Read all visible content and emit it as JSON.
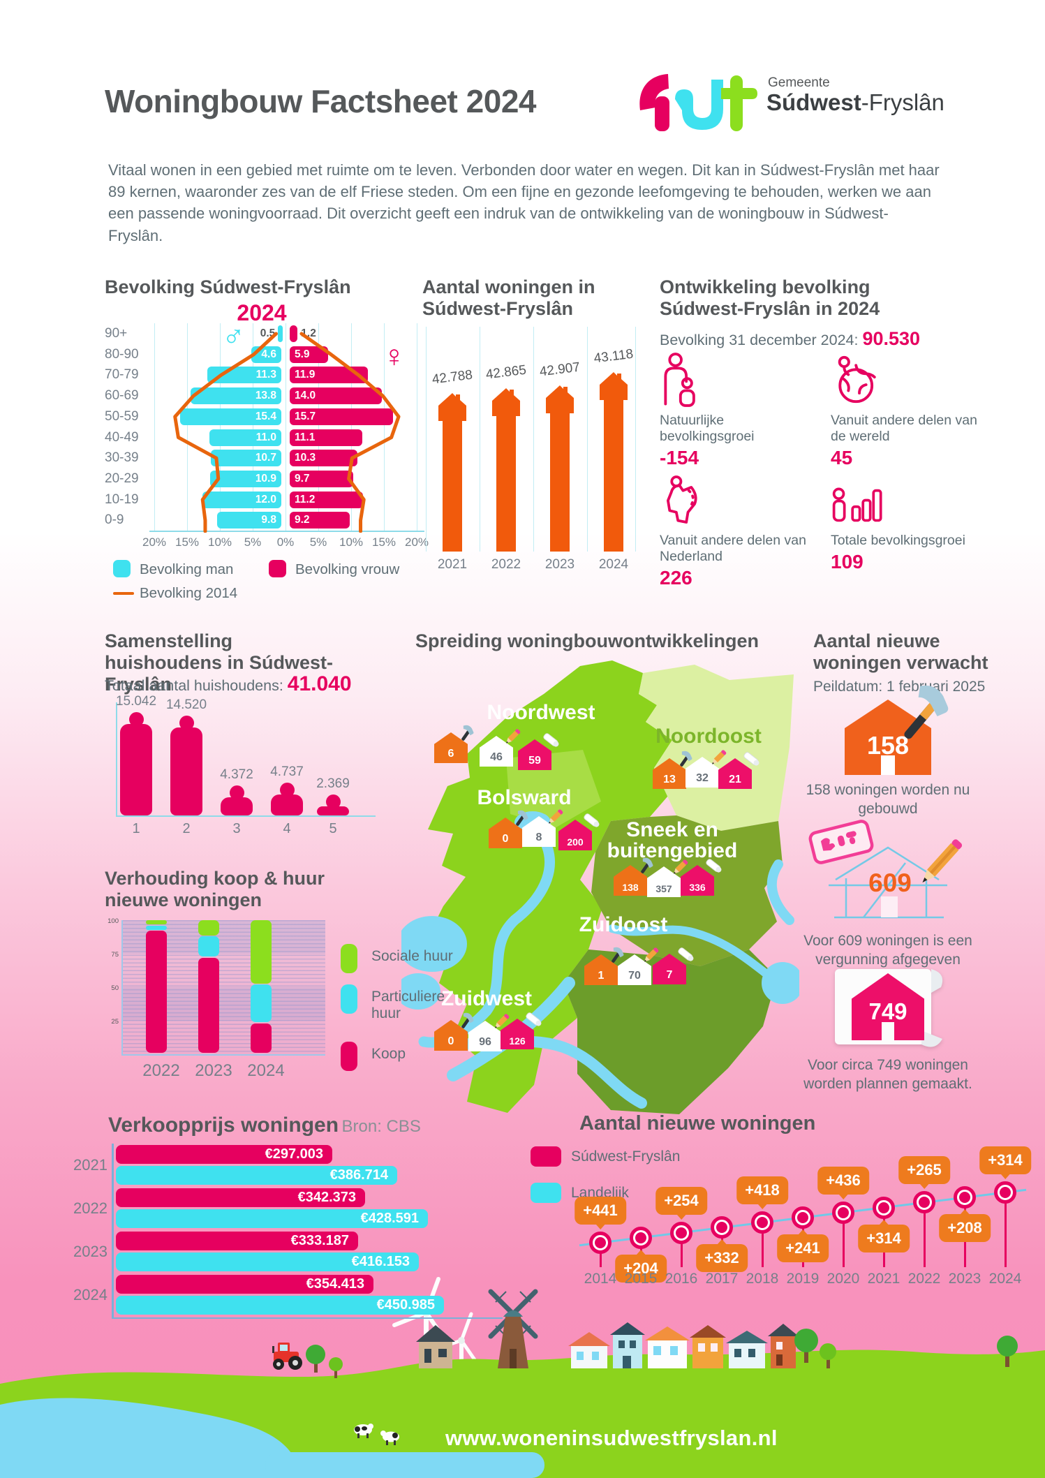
{
  "header": {
    "title": "Woningbouw Factsheet 2024",
    "logo": {
      "gemeente": "Gemeente",
      "name_bold": "Súdwest",
      "name_light": "-Fryslân"
    }
  },
  "intro": "Vitaal wonen in een gebied met ruimte om te leven. Verbonden door water en wegen. Dit kan in Súdwest-Fryslân met haar 89 kernen, waaronder zes van de elf Friese steden. Om een fijne en gezonde leefomgeving te behouden, werken we aan een passende woningvoorraad. Dit overzicht geeft een indruk van de ontwikkeling van de woningbouw in Súdwest-Fryslân.",
  "colors": {
    "pink": "#e6005f",
    "cyan": "#3fe1ef",
    "orange": "#f15a0c",
    "orange_soft": "#ee7b1e",
    "green": "#8cde1e",
    "map_green": "#8cd31d",
    "map_light": "#dcf0a2",
    "map_olive": "#7fa62c",
    "map_dark": "#6c9d2a",
    "water": "#7fd9f4",
    "heading_gray": "#55585a",
    "body_gray": "#5f6e75"
  },
  "sections": {
    "ontwikkeling": {
      "heading": "Ontwikkeling bevolking Súdwest-Fryslân in 2024",
      "intro_label": "Bevolking 31 december 2024:",
      "intro_value": "90.530",
      "items": [
        {
          "icon": "family-icon",
          "label": "Natuurlijke bevolkingsgroei",
          "value": "-154"
        },
        {
          "icon": "globe-icon",
          "label": "Vanuit andere delen van de wereld",
          "value": "45"
        },
        {
          "icon": "netherlands-icon",
          "label": "Vanuit andere delen van Nederland",
          "value": "226"
        },
        {
          "icon": "growth-chart-icon",
          "label": "Totale bevolkingsgroei",
          "value": "109"
        }
      ]
    },
    "verwacht": {
      "heading": "Aantal nieuwe woningen verwacht",
      "subtitle": "Peildatum: 1 februari 2025",
      "items": [
        {
          "icon": "orange-house-hammer-icon",
          "value": "158",
          "caption": "158 woningen worden nu gebouwd"
        },
        {
          "icon": "blueprint-pencil-icon",
          "value": "609",
          "caption": "Voor 609 woningen is een vergunning afgegeven"
        },
        {
          "icon": "pink-house-plan-icon",
          "value": "749",
          "caption": "Voor circa 749 woningen worden plannen gemaakt."
        }
      ]
    }
  },
  "chart_data": [
    {
      "id": "bevolking_piramide",
      "type": "bar",
      "title": "Bevolking Súdwest-Fryslân",
      "year_label": "2024",
      "categories": [
        "90+",
        "80-90",
        "70-79",
        "60-69",
        "50-59",
        "40-49",
        "30-39",
        "20-29",
        "10-19",
        "0-9"
      ],
      "unit": "%",
      "x_ticks": [
        "20%",
        "15%",
        "10%",
        "5%",
        "0%",
        "5%",
        "10%",
        "15%",
        "20%"
      ],
      "male_symbol": "♂",
      "female_symbol": "♀",
      "series": [
        {
          "name": "Bevolking man",
          "color": "#3fe1ef",
          "values": [
            0.5,
            4.6,
            11.3,
            13.8,
            15.4,
            11.0,
            10.7,
            10.9,
            12.0,
            9.8
          ]
        },
        {
          "name": "Bevolking vrouw",
          "color": "#e6005f",
          "values": [
            1.2,
            5.9,
            11.9,
            14.0,
            15.7,
            11.1,
            10.3,
            9.7,
            11.2,
            9.2
          ]
        }
      ],
      "line_2014": {
        "name": "Bevolking 2014",
        "color": "#e8650d",
        "man_estimated": [
          0.8,
          4.2,
          9.2,
          13.4,
          16.2,
          15.7,
          9.9,
          9.6,
          12.0,
          11.6
        ],
        "vrouw_estimated": [
          1.8,
          6.3,
          10.5,
          14.2,
          16.6,
          15.5,
          9.5,
          9.0,
          11.3,
          10.8
        ]
      }
    },
    {
      "id": "aantal_woningen",
      "type": "bar",
      "title": "Aantal woningen in Súdwest-Fryslân",
      "categories": [
        "2021",
        "2022",
        "2023",
        "2024"
      ],
      "values": [
        42788,
        42865,
        42907,
        43118
      ],
      "labels": [
        "42.788",
        "42.865",
        "42.907",
        "43.118"
      ],
      "color": "#f15a0c"
    },
    {
      "id": "samenstelling_huishoudens",
      "type": "bar",
      "title": "Samenstelling huishoudens in Súdwest-Fryslân",
      "subtitle_label": "Totaal aantal huishoudens:",
      "total": "41.040",
      "categories": [
        "1",
        "2",
        "3",
        "4",
        "5"
      ],
      "values": [
        15042,
        14520,
        4372,
        4737,
        2369
      ],
      "labels": [
        "15.042",
        "14.520",
        "4.372",
        "4.737",
        "2.369"
      ],
      "color": "#e6005f"
    },
    {
      "id": "verhouding_koop_huur",
      "type": "stacked_bar",
      "title": "Verhouding koop & huur nieuwe woningen",
      "categories": [
        "2022",
        "2023",
        "2024"
      ],
      "unit": "%",
      "y_ticks": [
        "100",
        "75",
        "50",
        "25"
      ],
      "series": [
        {
          "name": "Sociale huur",
          "color": "#8cde1e",
          "values": [
            4,
            12,
            48
          ]
        },
        {
          "name": "Particuliere huur",
          "color": "#3fe1ef",
          "values": [
            4,
            16,
            29
          ]
        },
        {
          "name": "Koop",
          "color": "#e6005f",
          "values": [
            92,
            72,
            23
          ]
        }
      ]
    },
    {
      "id": "verkoopprijs_woningen",
      "type": "bar",
      "orientation": "horizontal",
      "title": "Verkoopprijs woningen",
      "source": "Bron: CBS",
      "categories": [
        "2021",
        "2022",
        "2023",
        "2024"
      ],
      "series": [
        {
          "name": "Súdwest-Fryslân",
          "color": "#e6005f",
          "values": [
            297003,
            342373,
            333187,
            354413
          ],
          "labels": [
            "€297.003",
            "€342.373",
            "€333.187",
            "€354.413"
          ]
        },
        {
          "name": "Landelijk",
          "color": "#3fe1ef",
          "values": [
            386714,
            428591,
            416153,
            450985
          ],
          "labels": [
            "€386.714",
            "€428.591",
            "€416.153",
            "€450.985"
          ]
        }
      ]
    },
    {
      "id": "aantal_nieuwe_woningen",
      "type": "line",
      "title": "Aantal nieuwe woningen",
      "categories": [
        "2014",
        "2015",
        "2016",
        "2017",
        "2018",
        "2019",
        "2020",
        "2021",
        "2022",
        "2023",
        "2024"
      ],
      "values": [
        441,
        204,
        254,
        332,
        418,
        241,
        436,
        314,
        265,
        208,
        314
      ],
      "labels": [
        "+441",
        "+204",
        "+254",
        "+332",
        "+418",
        "+241",
        "+436",
        "+314",
        "+265",
        "+208",
        "+314"
      ],
      "label_positions": [
        "above",
        "below",
        "above",
        "below",
        "above",
        "below",
        "above",
        "below",
        "above",
        "below",
        "above"
      ],
      "bubble_color": "#ee7b1e",
      "marker_color": "#e6005f",
      "line_color": "#6fc9e8"
    },
    {
      "id": "spreiding_woningbouw",
      "type": "map",
      "title": "Spreiding woningbouwontwikkelingen",
      "house_markers": [
        "orange-hammer",
        "white-pencil",
        "pink-plan"
      ],
      "regions": [
        {
          "name": "Noordwest",
          "values": [
            6,
            46,
            59
          ]
        },
        {
          "name": "Noordoost",
          "values": [
            13,
            32,
            21
          ]
        },
        {
          "name": "Bolsward",
          "values": [
            0,
            8,
            200
          ]
        },
        {
          "name": "Sneek en buitengebied",
          "values": [
            138,
            357,
            336
          ]
        },
        {
          "name": "Zuidoost",
          "values": [
            1,
            70,
            7
          ]
        },
        {
          "name": "Zuidwest",
          "values": [
            0,
            96,
            126
          ]
        }
      ]
    }
  ],
  "footer": {
    "website": "www.woneninsudwestfryslan.nl"
  }
}
